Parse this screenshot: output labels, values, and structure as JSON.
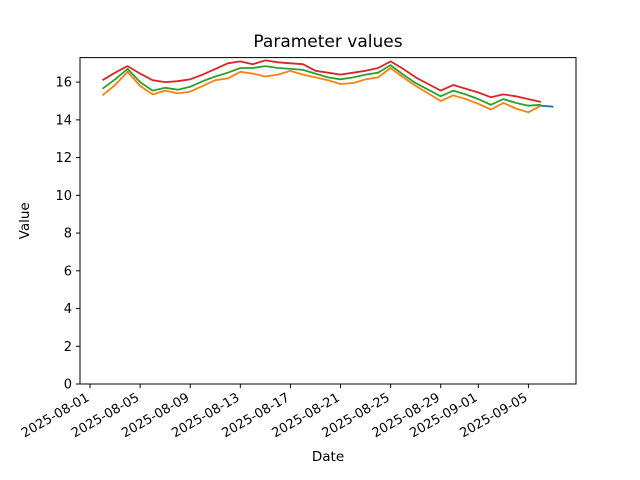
{
  "figure": {
    "title": "Parameter values",
    "xlabel": "Date",
    "ylabel": "Value"
  },
  "chart_data": {
    "type": "line",
    "title": "Parameter values",
    "xlabel": "Date",
    "ylabel": "Value",
    "grid": false,
    "legend": "none",
    "background": "#ffffff",
    "x": [
      "2025-08-02",
      "2025-08-03",
      "2025-08-04",
      "2025-08-05",
      "2025-08-06",
      "2025-08-07",
      "2025-08-08",
      "2025-08-09",
      "2025-08-10",
      "2025-08-11",
      "2025-08-12",
      "2025-08-13",
      "2025-08-14",
      "2025-08-15",
      "2025-08-16",
      "2025-08-17",
      "2025-08-18",
      "2025-08-19",
      "2025-08-20",
      "2025-08-21",
      "2025-08-22",
      "2025-08-23",
      "2025-08-24",
      "2025-08-25",
      "2025-08-26",
      "2025-08-27",
      "2025-08-28",
      "2025-08-29",
      "2025-08-30",
      "2025-08-31",
      "2025-09-01",
      "2025-09-02",
      "2025-09-03",
      "2025-09-04",
      "2025-09-05",
      "2025-09-06"
    ],
    "series": [
      {
        "name": "red",
        "color": "#d62728",
        "values": [
          16.1,
          16.5,
          16.85,
          16.45,
          16.1,
          16.0,
          16.05,
          16.15,
          16.4,
          16.7,
          17.0,
          17.1,
          16.95,
          17.15,
          17.05,
          17.0,
          16.95,
          16.6,
          16.5,
          16.4,
          16.5,
          16.6,
          16.75,
          17.1,
          16.7,
          16.25,
          15.9,
          15.55,
          15.85,
          15.65,
          15.45,
          15.2,
          15.35,
          15.25,
          15.1,
          14.95
        ]
      },
      {
        "name": "green",
        "color": "#2ca02c",
        "values": [
          15.65,
          16.15,
          16.7,
          16.0,
          15.55,
          15.7,
          15.6,
          15.75,
          16.05,
          16.3,
          16.5,
          16.75,
          16.75,
          16.85,
          16.75,
          16.7,
          16.65,
          16.45,
          16.25,
          16.15,
          16.25,
          16.4,
          16.5,
          16.9,
          16.4,
          15.95,
          15.6,
          15.25,
          15.55,
          15.35,
          15.1,
          14.8,
          15.1,
          14.9,
          14.75,
          14.8
        ]
      },
      {
        "name": "orange",
        "color": "#ff7f0e",
        "values": [
          15.3,
          15.85,
          16.55,
          15.8,
          15.35,
          15.55,
          15.4,
          15.5,
          15.8,
          16.1,
          16.2,
          16.55,
          16.45,
          16.3,
          16.4,
          16.6,
          16.4,
          16.25,
          16.1,
          15.9,
          15.95,
          16.15,
          16.25,
          16.75,
          16.25,
          15.8,
          15.4,
          15.0,
          15.3,
          15.1,
          14.85,
          14.55,
          14.9,
          14.6,
          14.4,
          14.75
        ]
      },
      {
        "name": "blue",
        "color": "#1f77b4",
        "x": [
          "2025-09-06",
          "2025-09-07"
        ],
        "values": [
          14.75,
          14.7
        ]
      }
    ],
    "x_ticks": [
      "2025-08-01",
      "2025-08-05",
      "2025-08-09",
      "2025-08-13",
      "2025-08-17",
      "2025-08-21",
      "2025-08-25",
      "2025-08-29",
      "2025-09-01",
      "2025-09-05"
    ],
    "y_ticks": [
      0,
      2,
      4,
      6,
      8,
      10,
      12,
      14,
      16
    ],
    "ylim": [
      0,
      17.3
    ],
    "x_margin": 0.05,
    "x_tick_rotation": 30
  }
}
